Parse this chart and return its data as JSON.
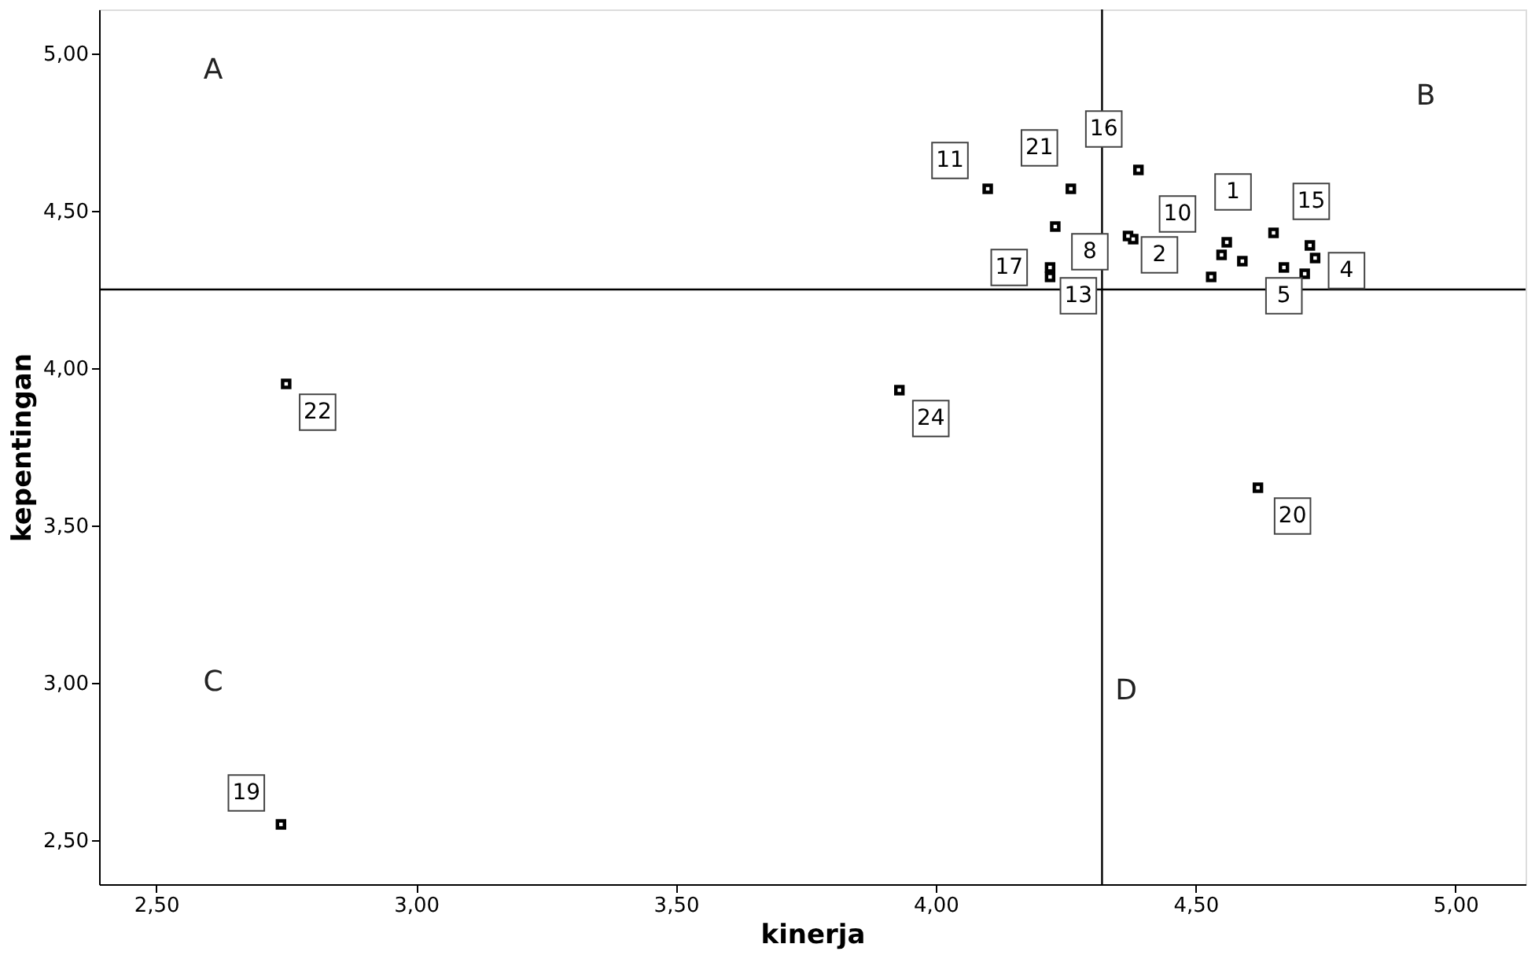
{
  "chart_data": {
    "type": "scatter",
    "xlabel": "kinerja",
    "ylabel": "kepentingan",
    "x": [
      2.74,
      2.75,
      3.93,
      4.62,
      4.1,
      4.26,
      4.39,
      4.23,
      4.22,
      4.22,
      4.37,
      4.56,
      4.55,
      4.65,
      4.67,
      4.73,
      4.59,
      4.53,
      4.72,
      4.71,
      4.38
    ],
    "values": [
      2.55,
      3.95,
      3.93,
      3.62,
      4.57,
      4.57,
      4.63,
      4.45,
      4.32,
      4.29,
      4.42,
      4.4,
      4.36,
      4.43,
      4.32,
      4.35,
      4.34,
      4.29,
      4.39,
      4.3,
      4.41
    ],
    "color": "#000000",
    "marker": "square",
    "grid": false,
    "xlim": [
      2.39,
      5.135
    ],
    "ylim": [
      2.36,
      5.14
    ],
    "xticks": [
      {
        "value": 2.5,
        "label": "2,50"
      },
      {
        "value": 3.0,
        "label": "3,00"
      },
      {
        "value": 3.5,
        "label": "3,50"
      },
      {
        "value": 4.0,
        "label": "4,00"
      },
      {
        "value": 4.5,
        "label": "4,50"
      },
      {
        "value": 5.0,
        "label": "5,00"
      }
    ],
    "yticks": [
      {
        "value": 2.5,
        "label": "2,50"
      },
      {
        "value": 3.0,
        "label": "3,00"
      },
      {
        "value": 3.5,
        "label": "3,50"
      },
      {
        "value": 4.0,
        "label": "4,00"
      },
      {
        "value": 4.5,
        "label": "4,50"
      },
      {
        "value": 5.0,
        "label": "5,00"
      }
    ],
    "ref_lines": [
      {
        "axis": "x",
        "value": 4.32,
        "color": "#000000"
      },
      {
        "axis": "y",
        "value": 4.25,
        "color": "#000000"
      }
    ],
    "annotations": [
      "A",
      "B",
      "C",
      "D",
      {
        "text": "19",
        "x": 2.74,
        "y": 2.55
      },
      {
        "text": "22",
        "x": 2.75,
        "y": 3.95
      },
      {
        "text": "24",
        "x": 3.93,
        "y": 3.93
      },
      {
        "text": "20",
        "x": 4.62,
        "y": 3.62
      },
      {
        "text": "11",
        "x": 4.1,
        "y": 4.57
      },
      {
        "text": "21",
        "x": 4.26,
        "y": 4.57
      },
      {
        "text": "16",
        "x": 4.39,
        "y": 4.63
      },
      {
        "text": "8",
        "x": 4.23,
        "y": 4.45
      },
      {
        "text": "17",
        "x": 4.22,
        "y": 4.32
      },
      {
        "text": "13",
        "x": 4.22,
        "y": 4.29
      },
      {
        "text": "2",
        "x": 4.37,
        "y": 4.42
      },
      {
        "text": "1",
        "x": 4.56,
        "y": 4.4
      },
      {
        "text": "10",
        "x": 4.55,
        "y": 4.36
      },
      {
        "text": "15",
        "x": 4.65,
        "y": 4.43
      },
      {
        "text": "5",
        "x": 4.67,
        "y": 4.32
      },
      {
        "text": "4",
        "x": 4.73,
        "y": 4.35
      }
    ]
  }
}
